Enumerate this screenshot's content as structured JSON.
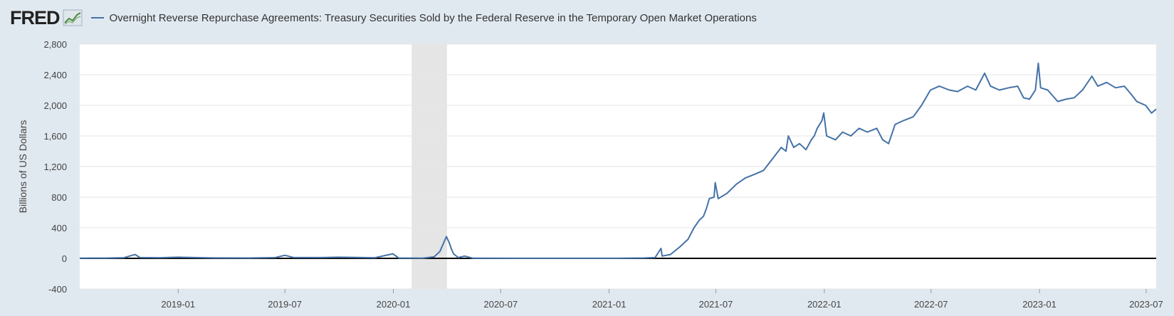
{
  "header": {
    "logo_text": "FRED",
    "logo_icon": "trend-chart-icon",
    "series_title": "Overnight Reverse Repurchase Agreements: Treasury Securities Sold by the Federal Reserve in the Temporary Open Market Operations"
  },
  "colors": {
    "background": "#e1e9f0",
    "plot_background": "#ffffff",
    "series": "#4572a7",
    "recession": "#e5e5e5",
    "grid": "#e6e6e6",
    "zero_line": "#000000"
  },
  "chart_data": {
    "type": "line",
    "title": "Overnight Reverse Repurchase Agreements: Treasury Securities Sold by the Federal Reserve in the Temporary Open Market Operations",
    "xlabel": "",
    "ylabel": "Billions of US Dollars",
    "ylim": [
      -400,
      2800
    ],
    "xlim": [
      "2018-07-18",
      "2023-07-18"
    ],
    "y_ticks": [
      -400,
      0,
      400,
      800,
      1200,
      1600,
      2000,
      2400,
      2800
    ],
    "y_tick_labels": [
      "-400",
      "0",
      "400",
      "800",
      "1,200",
      "1,600",
      "2,000",
      "2,400",
      "2,800"
    ],
    "x_ticks": [
      "2019-01",
      "2019-07",
      "2020-01",
      "2020-07",
      "2021-01",
      "2021-07",
      "2022-01",
      "2022-07",
      "2023-01",
      "2023-07"
    ],
    "recession": {
      "start": "2020-02",
      "end": "2020-04"
    },
    "grid": true,
    "series": [
      {
        "name": "Overnight Reverse Repurchase Agreements",
        "points": [
          [
            "2018-07-18",
            3
          ],
          [
            "2018-09-01",
            4
          ],
          [
            "2018-10-01",
            8
          ],
          [
            "2018-10-20",
            50
          ],
          [
            "2018-10-28",
            10
          ],
          [
            "2018-12-01",
            8
          ],
          [
            "2019-01-01",
            15
          ],
          [
            "2019-03-01",
            6
          ],
          [
            "2019-05-01",
            5
          ],
          [
            "2019-06-15",
            10
          ],
          [
            "2019-07-01",
            40
          ],
          [
            "2019-07-15",
            12
          ],
          [
            "2019-09-01",
            10
          ],
          [
            "2019-09-30",
            15
          ],
          [
            "2019-12-01",
            8
          ],
          [
            "2019-12-31",
            60
          ],
          [
            "2020-01-10",
            5
          ],
          [
            "2020-02-20",
            3
          ],
          [
            "2020-03-10",
            20
          ],
          [
            "2020-03-20",
            90
          ],
          [
            "2020-03-31",
            285
          ],
          [
            "2020-04-05",
            200
          ],
          [
            "2020-04-08",
            130
          ],
          [
            "2020-04-12",
            60
          ],
          [
            "2020-04-20",
            10
          ],
          [
            "2020-05-01",
            30
          ],
          [
            "2020-05-15",
            2
          ],
          [
            "2020-08-01",
            1
          ],
          [
            "2020-11-01",
            1
          ],
          [
            "2021-01-15",
            1
          ],
          [
            "2021-03-01",
            5
          ],
          [
            "2021-03-20",
            10
          ],
          [
            "2021-03-30",
            130
          ],
          [
            "2021-04-01",
            30
          ],
          [
            "2021-04-15",
            50
          ],
          [
            "2021-05-01",
            150
          ],
          [
            "2021-05-15",
            250
          ],
          [
            "2021-05-25",
            400
          ],
          [
            "2021-06-03",
            500
          ],
          [
            "2021-06-10",
            550
          ],
          [
            "2021-06-15",
            650
          ],
          [
            "2021-06-20",
            780
          ],
          [
            "2021-06-28",
            800
          ],
          [
            "2021-06-30",
            990
          ],
          [
            "2021-07-05",
            780
          ],
          [
            "2021-07-20",
            850
          ],
          [
            "2021-08-05",
            970
          ],
          [
            "2021-08-20",
            1050
          ],
          [
            "2021-09-05",
            1100
          ],
          [
            "2021-09-20",
            1150
          ],
          [
            "2021-09-30",
            1250
          ],
          [
            "2021-10-10",
            1350
          ],
          [
            "2021-10-20",
            1450
          ],
          [
            "2021-10-28",
            1400
          ],
          [
            "2021-11-01",
            1600
          ],
          [
            "2021-11-10",
            1450
          ],
          [
            "2021-11-20",
            1500
          ],
          [
            "2021-12-01",
            1420
          ],
          [
            "2021-12-10",
            1550
          ],
          [
            "2021-12-15",
            1600
          ],
          [
            "2021-12-20",
            1700
          ],
          [
            "2021-12-28",
            1800
          ],
          [
            "2021-12-31",
            1900
          ],
          [
            "2022-01-05",
            1600
          ],
          [
            "2022-01-20",
            1550
          ],
          [
            "2022-02-01",
            1650
          ],
          [
            "2022-02-15",
            1600
          ],
          [
            "2022-03-01",
            1700
          ],
          [
            "2022-03-15",
            1650
          ],
          [
            "2022-03-31",
            1700
          ],
          [
            "2022-04-10",
            1550
          ],
          [
            "2022-04-20",
            1500
          ],
          [
            "2022-05-01",
            1750
          ],
          [
            "2022-05-15",
            1800
          ],
          [
            "2022-06-01",
            1850
          ],
          [
            "2022-06-15",
            2000
          ],
          [
            "2022-06-30",
            2200
          ],
          [
            "2022-07-15",
            2250
          ],
          [
            "2022-08-01",
            2200
          ],
          [
            "2022-08-15",
            2180
          ],
          [
            "2022-09-01",
            2250
          ],
          [
            "2022-09-15",
            2200
          ],
          [
            "2022-09-30",
            2420
          ],
          [
            "2022-10-10",
            2250
          ],
          [
            "2022-10-25",
            2200
          ],
          [
            "2022-11-10",
            2230
          ],
          [
            "2022-11-25",
            2250
          ],
          [
            "2022-12-05",
            2100
          ],
          [
            "2022-12-15",
            2080
          ],
          [
            "2022-12-25",
            2200
          ],
          [
            "2022-12-30",
            2550
          ],
          [
            "2023-01-03",
            2230
          ],
          [
            "2023-01-15",
            2200
          ],
          [
            "2023-02-01",
            2050
          ],
          [
            "2023-02-15",
            2080
          ],
          [
            "2023-03-01",
            2100
          ],
          [
            "2023-03-15",
            2200
          ],
          [
            "2023-03-31",
            2380
          ],
          [
            "2023-04-10",
            2250
          ],
          [
            "2023-04-25",
            2300
          ],
          [
            "2023-05-10",
            2230
          ],
          [
            "2023-05-25",
            2250
          ],
          [
            "2023-06-05",
            2150
          ],
          [
            "2023-06-15",
            2050
          ],
          [
            "2023-06-30",
            2000
          ],
          [
            "2023-07-10",
            1900
          ],
          [
            "2023-07-18",
            1950
          ]
        ]
      }
    ]
  }
}
